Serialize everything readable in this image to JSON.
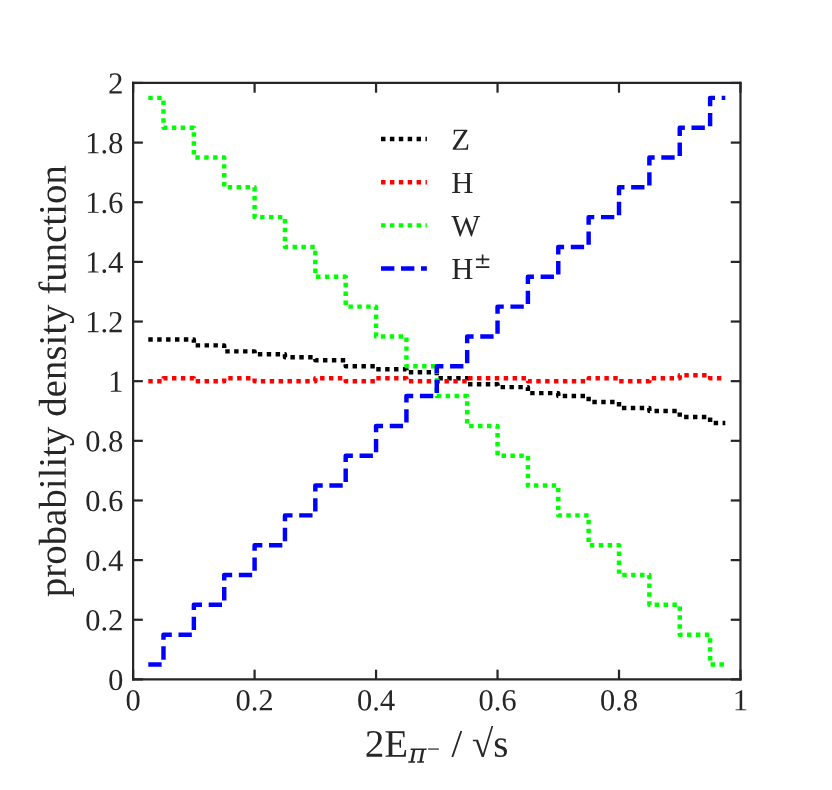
{
  "chart_data": {
    "type": "step",
    "xlabel": "2E$_{π⁻}$ / √s",
    "ylabel": "probability density function",
    "x": [
      0.025,
      0.075,
      0.125,
      0.175,
      0.225,
      0.275,
      0.325,
      0.375,
      0.425,
      0.475,
      0.525,
      0.575,
      0.625,
      0.675,
      0.725,
      0.775,
      0.825,
      0.875,
      0.925,
      0.975
    ],
    "series": [
      {
        "name": "Z",
        "color": "#000000",
        "line_style": "dotted",
        "values": [
          1.14,
          1.14,
          1.12,
          1.1,
          1.09,
          1.08,
          1.07,
          1.05,
          1.04,
          1.03,
          1.01,
          0.99,
          0.98,
          0.96,
          0.95,
          0.93,
          0.91,
          0.9,
          0.88,
          0.86
        ]
      },
      {
        "name": "H",
        "color": "#ff0000",
        "line_style": "dotted",
        "values": [
          1.0,
          1.01,
          1.0,
          1.01,
          1.0,
          1.0,
          1.01,
          1.0,
          1.01,
          1.0,
          1.0,
          1.01,
          1.01,
          1.0,
          1.0,
          1.01,
          1.0,
          1.01,
          1.02,
          1.01
        ]
      },
      {
        "name": "W",
        "color": "#00ff00",
        "line_style": "dotted",
        "values": [
          1.95,
          1.85,
          1.75,
          1.65,
          1.55,
          1.45,
          1.35,
          1.25,
          1.15,
          1.05,
          0.95,
          0.85,
          0.75,
          0.65,
          0.55,
          0.45,
          0.35,
          0.25,
          0.15,
          0.05
        ]
      },
      {
        "name": "H$^{±}$",
        "color": "#0000ff",
        "line_style": "dashed",
        "values": [
          0.05,
          0.15,
          0.25,
          0.35,
          0.45,
          0.55,
          0.65,
          0.75,
          0.85,
          0.95,
          1.05,
          1.15,
          1.25,
          1.35,
          1.45,
          1.55,
          1.65,
          1.75,
          1.85,
          1.95
        ]
      }
    ],
    "xlim": [
      0,
      1
    ],
    "xticks": [
      0,
      0.2,
      0.4,
      0.6,
      0.8,
      1
    ],
    "ylim": [
      0,
      2
    ],
    "yticks": [
      0,
      0.2,
      0.4,
      0.6,
      0.8,
      1,
      1.2,
      1.4,
      1.6,
      1.8,
      2
    ],
    "legend": "top",
    "grid": false
  }
}
